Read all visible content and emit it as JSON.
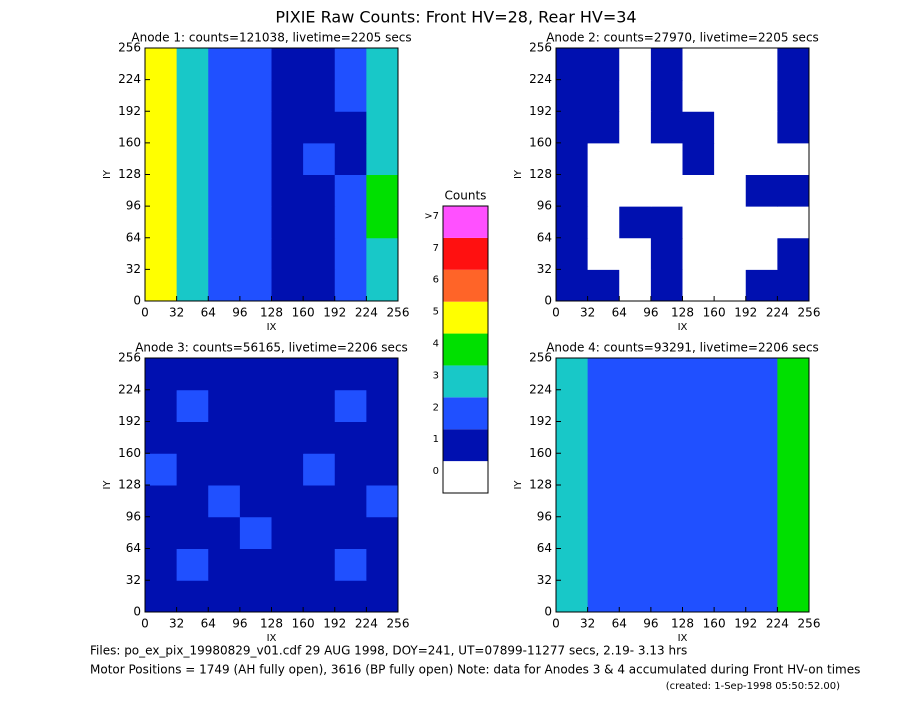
{
  "title": "PIXIE Raw Counts:  Front HV=28, Rear HV=34",
  "chart_data": [
    {
      "type": "heatmap",
      "title": "Anode 1: counts=121038, livetime=2205 secs",
      "xlabel": "IX",
      "ylabel": "IY",
      "xlim": [
        0,
        256
      ],
      "ylim": [
        0,
        256
      ],
      "xticks": [
        0,
        32,
        64,
        96,
        128,
        160,
        192,
        224,
        256
      ],
      "yticks": [
        0,
        32,
        64,
        96,
        128,
        160,
        192,
        224,
        256
      ],
      "z": [
        [
          5,
          3,
          2,
          2,
          1,
          1,
          2,
          3
        ],
        [
          5,
          3,
          2,
          2,
          1,
          1,
          2,
          3
        ],
        [
          5,
          3,
          2,
          2,
          1,
          1,
          2,
          4
        ],
        [
          5,
          3,
          2,
          2,
          1,
          1,
          2,
          4
        ],
        [
          5,
          3,
          2,
          2,
          1,
          2,
          1,
          3
        ],
        [
          5,
          3,
          2,
          2,
          1,
          1,
          1,
          3
        ],
        [
          5,
          3,
          2,
          2,
          1,
          1,
          2,
          3
        ],
        [
          5,
          3,
          2,
          2,
          1,
          1,
          2,
          3
        ]
      ]
    },
    {
      "type": "heatmap",
      "title": "Anode 2: counts=27970, livetime=2205 secs",
      "xlabel": "IX",
      "ylabel": "IY",
      "xlim": [
        0,
        256
      ],
      "ylim": [
        0,
        256
      ],
      "xticks": [
        0,
        32,
        64,
        96,
        128,
        160,
        192,
        224,
        256
      ],
      "yticks": [
        0,
        32,
        64,
        96,
        128,
        160,
        192,
        224,
        256
      ],
      "z": [
        [
          1,
          1,
          0,
          1,
          0,
          0,
          1,
          1
        ],
        [
          1,
          0,
          0,
          1,
          0,
          0,
          0,
          1
        ],
        [
          1,
          0,
          1,
          1,
          0,
          0,
          0,
          0
        ],
        [
          1,
          0,
          0,
          0,
          0,
          0,
          1,
          1
        ],
        [
          1,
          0,
          0,
          0,
          1,
          0,
          0,
          0
        ],
        [
          1,
          1,
          0,
          1,
          1,
          0,
          0,
          1
        ],
        [
          1,
          1,
          0,
          1,
          0,
          0,
          0,
          1
        ],
        [
          1,
          1,
          0,
          1,
          0,
          0,
          0,
          1
        ]
      ]
    },
    {
      "type": "heatmap",
      "title": "Anode 3: counts=56165, livetime=2206 secs",
      "xlabel": "IX",
      "ylabel": "IY",
      "xlim": [
        0,
        256
      ],
      "ylim": [
        0,
        256
      ],
      "xticks": [
        0,
        32,
        64,
        96,
        128,
        160,
        192,
        224,
        256
      ],
      "yticks": [
        0,
        32,
        64,
        96,
        128,
        160,
        192,
        224,
        256
      ],
      "z": [
        [
          1,
          1,
          1,
          1,
          1,
          1,
          1,
          1
        ],
        [
          1,
          2,
          1,
          1,
          1,
          1,
          2,
          1
        ],
        [
          1,
          1,
          1,
          2,
          1,
          1,
          1,
          1
        ],
        [
          1,
          1,
          2,
          1,
          1,
          1,
          1,
          2
        ],
        [
          2,
          1,
          1,
          1,
          1,
          2,
          1,
          1
        ],
        [
          1,
          1,
          1,
          1,
          1,
          1,
          1,
          1
        ],
        [
          1,
          2,
          1,
          1,
          1,
          1,
          2,
          1
        ],
        [
          1,
          1,
          1,
          1,
          1,
          1,
          1,
          1
        ]
      ]
    },
    {
      "type": "heatmap",
      "title": "Anode 4: counts=93291, livetime=2206 secs",
      "xlabel": "IX",
      "ylabel": "IY",
      "xlim": [
        0,
        256
      ],
      "ylim": [
        0,
        256
      ],
      "xticks": [
        0,
        32,
        64,
        96,
        128,
        160,
        192,
        224,
        256
      ],
      "yticks": [
        0,
        32,
        64,
        96,
        128,
        160,
        192,
        224,
        256
      ],
      "z": [
        [
          3,
          2,
          2,
          2,
          2,
          2,
          2,
          4
        ],
        [
          3,
          2,
          2,
          2,
          2,
          2,
          2,
          4
        ],
        [
          3,
          2,
          2,
          2,
          2,
          2,
          2,
          4
        ],
        [
          3,
          2,
          2,
          2,
          2,
          2,
          2,
          4
        ],
        [
          3,
          2,
          2,
          2,
          2,
          2,
          2,
          4
        ],
        [
          3,
          2,
          2,
          2,
          2,
          2,
          2,
          4
        ],
        [
          3,
          2,
          2,
          2,
          2,
          2,
          2,
          4
        ],
        [
          3,
          2,
          2,
          2,
          2,
          2,
          2,
          4
        ]
      ]
    }
  ],
  "colorbar": {
    "title": "Counts",
    "ticks": [
      0,
      1,
      2,
      3,
      4,
      5,
      6,
      7,
      {
        "value": 8,
        "label": ">7"
      }
    ],
    "colors": [
      "#ffffff",
      "#0010b0",
      "#2050ff",
      "#18c8c8",
      "#00e000",
      "#ffff00",
      "#ff6428",
      "#ff1010",
      "#ff50ff"
    ]
  },
  "footer": [
    "Files: po_ex_pix_19980829_v01.cdf    29 AUG 1998, DOY=241, UT=07899-11277 secs,  2.19- 3.13 hrs",
    "Motor Positions = 1749 (AH fully open), 3616 (BP fully open)    Note: data for Anodes 3 & 4 accumulated during Front HV-on times",
    "(created:  1-Sep-1998 05:50:52.00)"
  ]
}
